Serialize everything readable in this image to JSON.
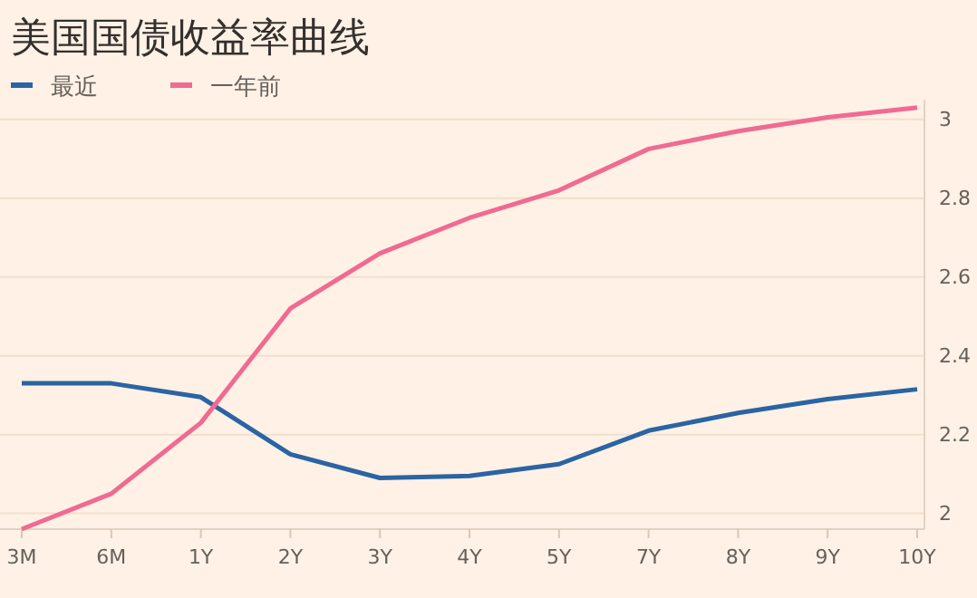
{
  "chart_data": {
    "type": "line",
    "title": "美国国债收益率曲线",
    "categories": [
      "3M",
      "6M",
      "1Y",
      "2Y",
      "3Y",
      "4Y",
      "5Y",
      "7Y",
      "8Y",
      "9Y",
      "10Y"
    ],
    "series": [
      {
        "name": "最近",
        "color": "#2b64a3",
        "values": [
          2.33,
          2.33,
          2.295,
          2.15,
          2.09,
          2.095,
          2.125,
          2.21,
          2.255,
          2.29,
          2.315
        ]
      },
      {
        "name": "一年前",
        "color": "#f06a91",
        "values": [
          1.96,
          2.05,
          2.23,
          2.52,
          2.66,
          2.75,
          2.82,
          2.925,
          2.97,
          3.005,
          3.03
        ]
      }
    ],
    "ylim": [
      1.96,
      3.05
    ],
    "yticks": [
      2,
      2.2,
      2.4,
      2.6,
      2.8,
      3
    ],
    "grid": "y",
    "legend": "top left",
    "marker": "none",
    "line_style": "solid"
  }
}
